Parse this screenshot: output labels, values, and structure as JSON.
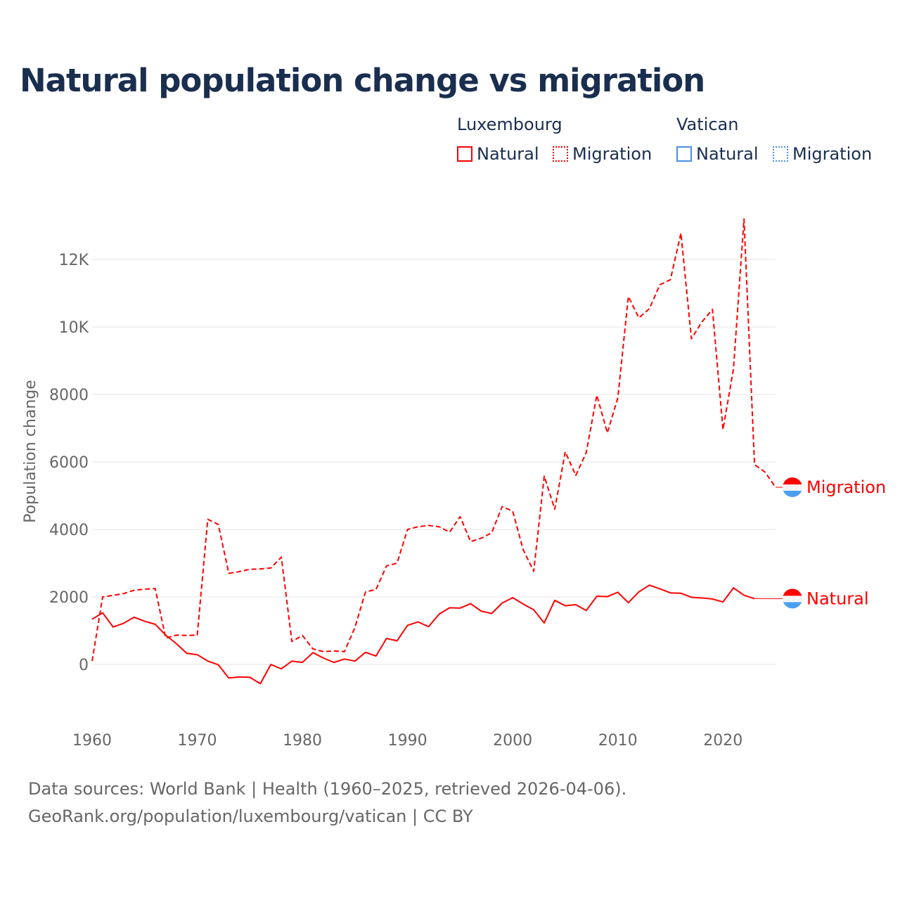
{
  "title": "Natural population change vs migration",
  "legend": {
    "groups": [
      {
        "name": "Luxembourg",
        "color": "#ff0000",
        "items": [
          "Natural",
          "Migration"
        ]
      },
      {
        "name": "Vatican",
        "color": "#4a90e2",
        "items": [
          "Natural",
          "Migration"
        ]
      }
    ]
  },
  "footer": {
    "line1": "Data sources: World Bank | Health (1960–2025, retrieved 2026-04-06).",
    "line2": "GeoRank.org/population/luxembourg/vatican | CC BY"
  },
  "chart_data": {
    "type": "line",
    "title": "Natural population change vs migration",
    "xlabel": "",
    "ylabel": "Population change",
    "xlim": [
      1960,
      2025
    ],
    "ylim": [
      -1000,
      13300
    ],
    "xticks": [
      1960,
      1970,
      1980,
      1990,
      2000,
      2010,
      2020
    ],
    "xtick_labels": [
      "1960",
      "1970",
      "1980",
      "1990",
      "2000",
      "2010",
      "2020"
    ],
    "yticks": [
      0,
      2000,
      4000,
      6000,
      8000,
      10000,
      12000
    ],
    "ytick_labels": [
      "0",
      "2000",
      "4000",
      "6000",
      "8000",
      "10K",
      "12K"
    ],
    "grid": true,
    "legend_position": "top-right",
    "series": [
      {
        "name": "Luxembourg Migration",
        "end_label": "Migration",
        "color": "#ff0000",
        "dash": true,
        "x_start": 1960,
        "values": [
          100,
          2000,
          2050,
          2100,
          2200,
          2230,
          2250,
          780,
          870,
          860,
          870,
          4300,
          4150,
          2700,
          2750,
          2820,
          2830,
          2860,
          3180,
          680,
          860,
          460,
          380,
          400,
          380,
          1100,
          2150,
          2220,
          2920,
          3000,
          4000,
          4080,
          4120,
          4080,
          3920,
          4380,
          3640,
          3740,
          3900,
          4680,
          4540,
          3400,
          2760,
          5580,
          4600,
          6300,
          5600,
          6280,
          7980,
          6860,
          7900,
          10900,
          10270,
          10540,
          11250,
          11400,
          12780,
          9650,
          10150,
          10520,
          6960,
          8760,
          13200,
          5920,
          5700,
          5250
        ]
      },
      {
        "name": "Luxembourg Natural",
        "end_label": "Natural",
        "color": "#ff0000",
        "dash": false,
        "x_start": 1960,
        "values": [
          1340,
          1530,
          1110,
          1220,
          1400,
          1280,
          1190,
          870,
          620,
          330,
          290,
          100,
          -10,
          -400,
          -370,
          -380,
          -570,
          0,
          -130,
          100,
          60,
          350,
          190,
          60,
          160,
          100,
          360,
          250,
          770,
          700,
          1160,
          1260,
          1120,
          1490,
          1680,
          1670,
          1800,
          1580,
          1510,
          1820,
          1980,
          1790,
          1620,
          1230,
          1900,
          1740,
          1770,
          1600,
          2020,
          2010,
          2140,
          1830,
          2150,
          2350,
          2240,
          2120,
          2110,
          1990,
          1970,
          1940,
          1850,
          2270,
          2050,
          1950
        ]
      }
    ]
  }
}
